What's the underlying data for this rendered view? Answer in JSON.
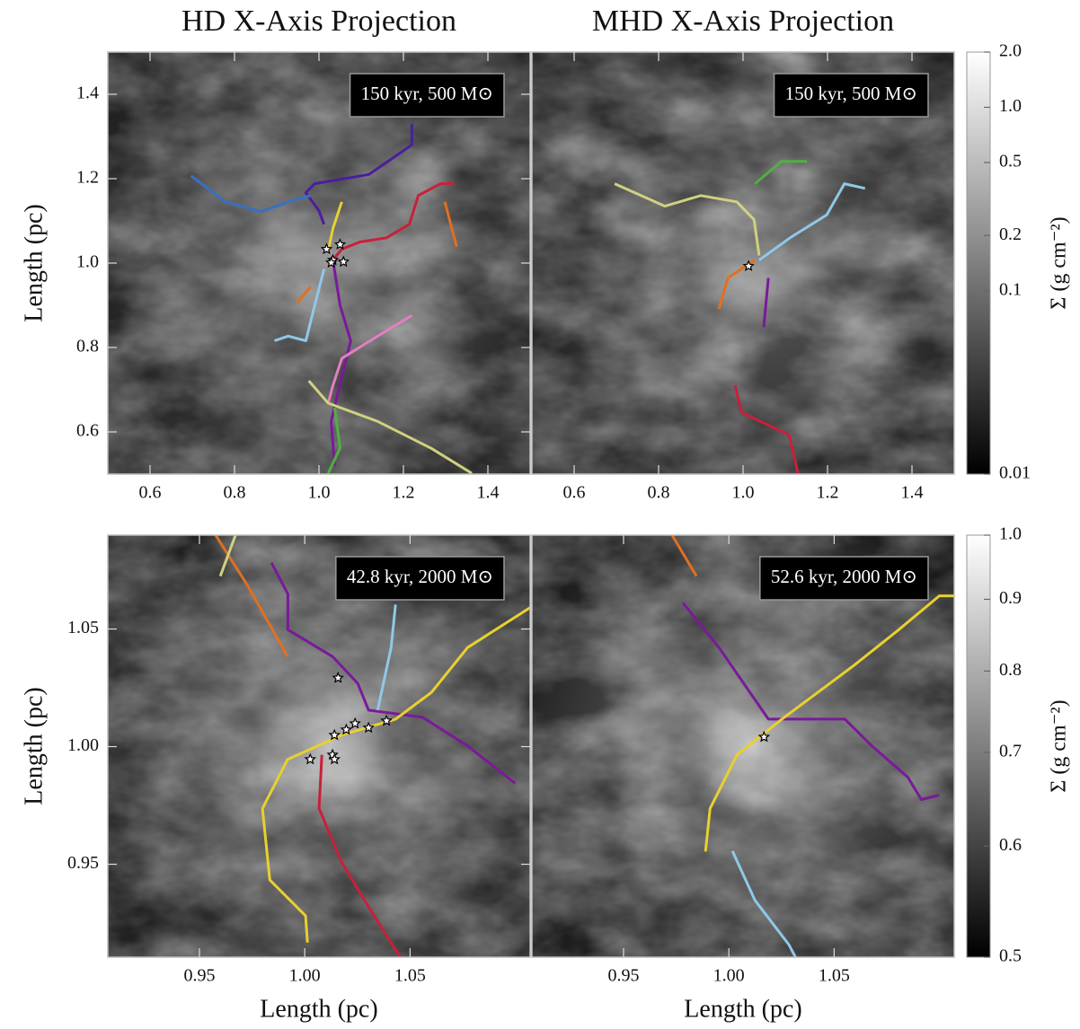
{
  "chart_data": [
    {
      "type": "line",
      "title": "HD X-Axis Projection",
      "annotation": "150 kyr, 500 M⊙",
      "ylabel": "Length (pc)",
      "xlim": [
        0.5,
        1.5
      ],
      "ylim": [
        0.5,
        1.5
      ],
      "xticks": [
        0.6,
        0.8,
        {
          "value": 1,
          "label": "1.0"
        },
        1.2,
        1.4
      ],
      "yticks": [
        0.6,
        0.8,
        {
          "value": 1,
          "label": "1.0"
        },
        1.2,
        1.4
      ],
      "series": [
        {
          "color": "#4a1ea0",
          "x": [
            1.22,
            1.22,
            1.118,
            0.99,
            0.969,
            1.0,
            1.012
          ],
          "y": [
            1.33,
            1.28,
            1.21,
            1.188,
            1.167,
            1.124,
            1.092
          ]
        },
        {
          "color": "#3a6fc0",
          "x": [
            0.697,
            0.778,
            0.863,
            0.927,
            0.98
          ],
          "y": [
            1.207,
            1.145,
            1.122,
            1.145,
            1.16
          ]
        },
        {
          "color": "#c8203a",
          "x": [
            1.32,
            1.288,
            1.235,
            1.214,
            1.16,
            1.097,
            1.054,
            1.033
          ],
          "y": [
            1.188,
            1.188,
            1.16,
            1.092,
            1.06,
            1.05,
            1.033,
            1.007
          ]
        },
        {
          "color": "#e07020",
          "x": [
            1.298,
            1.326
          ],
          "y": [
            1.145,
            1.039
          ]
        },
        {
          "color": "#e07020",
          "x": [
            0.98,
            0.948
          ],
          "y": [
            0.944,
            0.906
          ]
        },
        {
          "color": "#e8d030",
          "x": [
            1.054,
            1.033,
            1.022
          ],
          "y": [
            1.145,
            1.082,
            1.029
          ]
        },
        {
          "color": "#7a1a9a",
          "x": [
            1.033,
            1.05,
            1.075,
            1.054,
            1.029,
            1.037
          ],
          "y": [
            1.007,
            0.9,
            0.816,
            0.731,
            0.625,
            0.519
          ]
        },
        {
          "color": "#90c8e8",
          "x": [
            1.012,
            0.99,
            0.969,
            0.927,
            0.895
          ],
          "y": [
            0.986,
            0.9,
            0.816,
            0.827,
            0.816
          ]
        },
        {
          "color": "#e080c0",
          "x": [
            1.22,
            1.139,
            1.054,
            1.033,
            1.022
          ],
          "y": [
            0.876,
            0.827,
            0.774,
            0.71,
            0.668
          ]
        },
        {
          "color": "#d0d080",
          "x": [
            0.976,
            1.022,
            1.139,
            1.266,
            1.362
          ],
          "y": [
            0.721,
            0.668,
            0.625,
            0.561,
            0.502
          ]
        },
        {
          "color": "#50b040",
          "x": [
            1.037,
            1.05,
            1.022
          ],
          "y": [
            0.657,
            0.562,
            0.502
          ]
        }
      ],
      "stars": {
        "x": [
          1.018,
          1.033,
          1.05,
          1.058,
          1.029
        ],
        "y": [
          1.033,
          1.007,
          1.044,
          1.003,
          1.001
        ]
      }
    },
    {
      "type": "line",
      "title": "MHD X-Axis Projection",
      "annotation": "150 kyr, 500 M⊙",
      "xlim": [
        0.5,
        1.5
      ],
      "ylim": [
        0.5,
        1.5
      ],
      "xticks": [
        0.6,
        0.8,
        {
          "value": 1,
          "label": "1.0"
        },
        1.2,
        1.4
      ],
      "series": [
        {
          "color": "#d0d080",
          "x": [
            0.696,
            0.815,
            0.9,
            0.985,
            1.026,
            1.038
          ],
          "y": [
            1.188,
            1.135,
            1.16,
            1.145,
            1.103,
            1.018
          ]
        },
        {
          "color": "#50b040",
          "x": [
            1.028,
            1.091,
            1.151
          ],
          "y": [
            1.188,
            1.241,
            1.241
          ]
        },
        {
          "color": "#90c8e8",
          "x": [
            1.289,
            1.24,
            1.198,
            1.113,
            1.038
          ],
          "y": [
            1.177,
            1.188,
            1.114,
            1.061,
            1.007
          ]
        },
        {
          "color": "#e07020",
          "x": [
            1.028,
            0.964,
            0.943
          ],
          "y": [
            1.007,
            0.965,
            0.891
          ]
        },
        {
          "color": "#7a1a9a",
          "x": [
            1.06,
            1.049
          ],
          "y": [
            0.965,
            0.848
          ]
        },
        {
          "color": "#c8203a",
          "x": [
            0.981,
            0.996,
            1.109,
            1.13
          ],
          "y": [
            0.71,
            0.646,
            0.593,
            0.502
          ]
        }
      ],
      "stars": {
        "x": [
          1.013
        ],
        "y": [
          0.993
        ]
      }
    },
    {
      "type": "colorbar",
      "ylabel": "Σ (g cm⁻²)",
      "log_scale": true,
      "ylim": [
        0.01,
        2
      ],
      "yticks": [
        0.01,
        0.1,
        0.2,
        0.5,
        {
          "value": 1,
          "label": "1.0"
        },
        {
          "value": 2,
          "label": "2.0"
        }
      ]
    },
    {
      "type": "line",
      "annotation": "42.8 kyr, 2000 M⊙",
      "xlabel": "Length (pc)",
      "ylabel": "Length (pc)",
      "xlim": [
        0.9065,
        1.107
      ],
      "ylim": [
        0.9105,
        1.0899
      ],
      "xticks": [
        0.95,
        {
          "value": 1,
          "label": "1.00"
        },
        1.05
      ],
      "yticks": [
        0.95,
        {
          "value": 1,
          "label": "1.00"
        },
        1.05
      ],
      "series": [
        {
          "color": "#7a1a9a",
          "x": [
            0.9842,
            0.992,
            0.992,
            1.0132,
            1.0252,
            1.0303,
            1.0559,
            1.0773,
            1.0999
          ],
          "y": [
            1.0782,
            1.0649,
            1.0497,
            1.0383,
            1.0269,
            1.0155,
            1.0125,
            1.0003,
            0.9844
          ]
        },
        {
          "color": "#90c8e8",
          "x": [
            1.0431,
            1.041,
            1.0346
          ],
          "y": [
            1.0604,
            1.0421,
            1.0155
          ]
        },
        {
          "color": "#e8d030",
          "x": [
            1.0013,
            1.0004,
            0.9834,
            0.9799,
            0.9919,
            1.0175,
            1.0431,
            1.0602,
            1.0773,
            1.1072
          ],
          "y": [
            0.9167,
            0.9281,
            0.9433,
            0.9737,
            0.9946,
            1.0049,
            1.0117,
            1.0231,
            1.0421,
            1.0592
          ]
        },
        {
          "color": "#c8203a",
          "x": [
            1.0453,
            1.0303,
            1.0175,
            1.0068,
            1.0081
          ],
          "y": [
            0.9105,
            0.9319,
            0.9509,
            0.9737,
            0.9965
          ]
        },
        {
          "color": "#e07020",
          "x": [
            0.9577,
            0.9727,
            0.9919
          ],
          "y": [
            1.0899,
            1.0687,
            1.0383
          ]
        },
        {
          "color": "#d0d080",
          "x": [
            0.9671,
            0.9599
          ],
          "y": [
            1.0899,
            1.0725
          ]
        }
      ],
      "stars": {
        "x": [
          1.0158,
          1.0141,
          1.0197,
          1.0239,
          1.0303,
          1.0388,
          1.0132,
          1.0026,
          1.0141
        ],
        "y": [
          1.0292,
          1.0049,
          1.0072,
          1.0098,
          1.008,
          1.011,
          0.9965,
          0.9946,
          0.9946
        ]
      }
    },
    {
      "type": "line",
      "annotation": "52.6 kyr, 2000 M⊙",
      "xlabel": "Length (pc)",
      "xlim": [
        0.9065,
        1.107
      ],
      "ylim": [
        0.9105,
        1.0899
      ],
      "xticks": [
        0.95,
        {
          "value": 1,
          "label": "1.00"
        },
        1.05
      ],
      "series": [
        {
          "color": "#e07020",
          "x": [
            0.9731,
            0.9846
          ],
          "y": [
            1.0899,
            1.0725
          ]
        },
        {
          "color": "#7a1a9a",
          "x": [
            0.9782,
            0.9953,
            1.0188,
            1.0551,
            1.0679,
            1.085,
            1.0914,
            1.0999
          ],
          "y": [
            1.0611,
            1.0421,
            1.0117,
            1.0117,
            1.0003,
            0.987,
            0.9775,
            0.9794
          ]
        },
        {
          "color": "#e8d030",
          "x": [
            0.9889,
            0.9911,
            1.0039,
            1.0252,
            1.0594,
            1.0807,
            1.0999,
            1.1072
          ],
          "y": [
            0.9554,
            0.9737,
            0.9965,
            1.0117,
            1.0345,
            1.0497,
            1.0641,
            1.0641
          ]
        },
        {
          "color": "#90c8e8",
          "x": [
            1.0017,
            1.0124,
            1.0286,
            1.0316
          ],
          "y": [
            0.9556,
            0.9347,
            0.9157,
            0.9105
          ]
        }
      ],
      "stars": {
        "x": [
          1.0167
        ],
        "y": [
          1.0041
        ]
      }
    },
    {
      "type": "colorbar",
      "ylabel": "Σ (g cm⁻²)",
      "log_scale": true,
      "ylim": [
        0.5,
        1
      ],
      "yticks": [
        0.5,
        0.6,
        0.7,
        0.8,
        0.9,
        {
          "value": 1,
          "label": "1.0"
        }
      ]
    }
  ]
}
